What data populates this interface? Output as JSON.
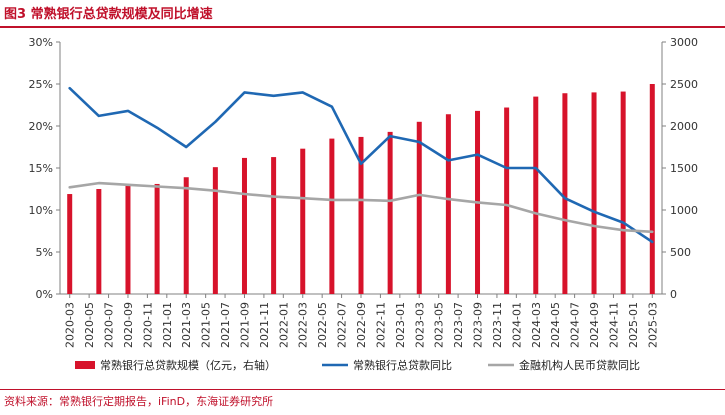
{
  "title": "图3  常熟银行总贷款规模及同比增速",
  "source": "资料来源：常熟银行定期报告，iFinD，东海证券研究所",
  "chart_data": {
    "type": "bar",
    "categories": [
      "2020-03",
      "2020-05",
      "2020-07",
      "2020-09",
      "2020-11",
      "2021-01",
      "2021-03",
      "2021-05",
      "2021-07",
      "2021-09",
      "2021-11",
      "2022-01",
      "2022-03",
      "2022-05",
      "2022-07",
      "2022-09",
      "2022-11",
      "2023-01",
      "2023-03",
      "2023-05",
      "2023-07",
      "2023-09",
      "2023-11",
      "2024-01",
      "2024-03",
      "2024-05",
      "2024-07",
      "2024-09",
      "2024-11",
      "2025-01",
      "2025-03"
    ],
    "y_left": {
      "ylim": [
        0,
        30
      ],
      "ticks": [
        "0%",
        "5%",
        "10%",
        "15%",
        "20%",
        "25%",
        "30%"
      ]
    },
    "y_right": {
      "ylim": [
        0,
        3000
      ],
      "ticks": [
        "0",
        "500",
        "1000",
        "1500",
        "2000",
        "2500",
        "3000"
      ]
    },
    "grid": false,
    "legend_position": "bottom",
    "series": [
      {
        "name": "常熟银行总贷款规模（亿元，右轴）",
        "type": "bar",
        "axis": "right",
        "color": "#d7132b",
        "points": [
          {
            "x": "2020-03",
            "y": 1190
          },
          {
            "x": "2020-06",
            "y": 1250
          },
          {
            "x": "2020-09",
            "y": 1290
          },
          {
            "x": "2020-12",
            "y": 1310
          },
          {
            "x": "2021-03",
            "y": 1390
          },
          {
            "x": "2021-06",
            "y": 1510
          },
          {
            "x": "2021-09",
            "y": 1620
          },
          {
            "x": "2021-12",
            "y": 1630
          },
          {
            "x": "2022-03",
            "y": 1730
          },
          {
            "x": "2022-06",
            "y": 1850
          },
          {
            "x": "2022-09",
            "y": 1870
          },
          {
            "x": "2022-12",
            "y": 1930
          },
          {
            "x": "2023-03",
            "y": 2050
          },
          {
            "x": "2023-06",
            "y": 2140
          },
          {
            "x": "2023-09",
            "y": 2180
          },
          {
            "x": "2023-12",
            "y": 2220
          },
          {
            "x": "2024-03",
            "y": 2350
          },
          {
            "x": "2024-06",
            "y": 2390
          },
          {
            "x": "2024-09",
            "y": 2400
          },
          {
            "x": "2024-12",
            "y": 2410
          },
          {
            "x": "2025-03",
            "y": 2500
          }
        ]
      },
      {
        "name": "常熟银行总贷款同比",
        "type": "line",
        "axis": "left",
        "color": "#1f68b3",
        "points": [
          {
            "x": "2020-03",
            "y": 24.5
          },
          {
            "x": "2020-06",
            "y": 21.2
          },
          {
            "x": "2020-09",
            "y": 21.8
          },
          {
            "x": "2020-12",
            "y": 19.8
          },
          {
            "x": "2021-03",
            "y": 17.5
          },
          {
            "x": "2021-06",
            "y": 20.5
          },
          {
            "x": "2021-09",
            "y": 24.0
          },
          {
            "x": "2021-12",
            "y": 23.6
          },
          {
            "x": "2022-03",
            "y": 24.0
          },
          {
            "x": "2022-06",
            "y": 22.3
          },
          {
            "x": "2022-09",
            "y": 15.5
          },
          {
            "x": "2022-12",
            "y": 18.8
          },
          {
            "x": "2023-03",
            "y": 18.1
          },
          {
            "x": "2023-06",
            "y": 15.9
          },
          {
            "x": "2023-09",
            "y": 16.6
          },
          {
            "x": "2023-12",
            "y": 15.0
          },
          {
            "x": "2024-03",
            "y": 15.0
          },
          {
            "x": "2024-06",
            "y": 11.4
          },
          {
            "x": "2024-09",
            "y": 9.8
          },
          {
            "x": "2024-12",
            "y": 8.5
          },
          {
            "x": "2025-03",
            "y": 6.2
          }
        ]
      },
      {
        "name": "金融机构人民币贷款同比",
        "type": "line",
        "axis": "left",
        "color": "#a6a6a6",
        "points": [
          {
            "x": "2020-03",
            "y": 12.7
          },
          {
            "x": "2020-06",
            "y": 13.2
          },
          {
            "x": "2020-09",
            "y": 13.0
          },
          {
            "x": "2020-12",
            "y": 12.8
          },
          {
            "x": "2021-03",
            "y": 12.6
          },
          {
            "x": "2021-06",
            "y": 12.3
          },
          {
            "x": "2021-09",
            "y": 11.9
          },
          {
            "x": "2021-12",
            "y": 11.6
          },
          {
            "x": "2022-03",
            "y": 11.4
          },
          {
            "x": "2022-06",
            "y": 11.2
          },
          {
            "x": "2022-09",
            "y": 11.2
          },
          {
            "x": "2022-12",
            "y": 11.1
          },
          {
            "x": "2023-03",
            "y": 11.8
          },
          {
            "x": "2023-06",
            "y": 11.3
          },
          {
            "x": "2023-09",
            "y": 10.9
          },
          {
            "x": "2023-12",
            "y": 10.6
          },
          {
            "x": "2024-03",
            "y": 9.6
          },
          {
            "x": "2024-06",
            "y": 8.8
          },
          {
            "x": "2024-09",
            "y": 8.1
          },
          {
            "x": "2024-12",
            "y": 7.6
          },
          {
            "x": "2025-03",
            "y": 7.4
          }
        ]
      }
    ]
  }
}
